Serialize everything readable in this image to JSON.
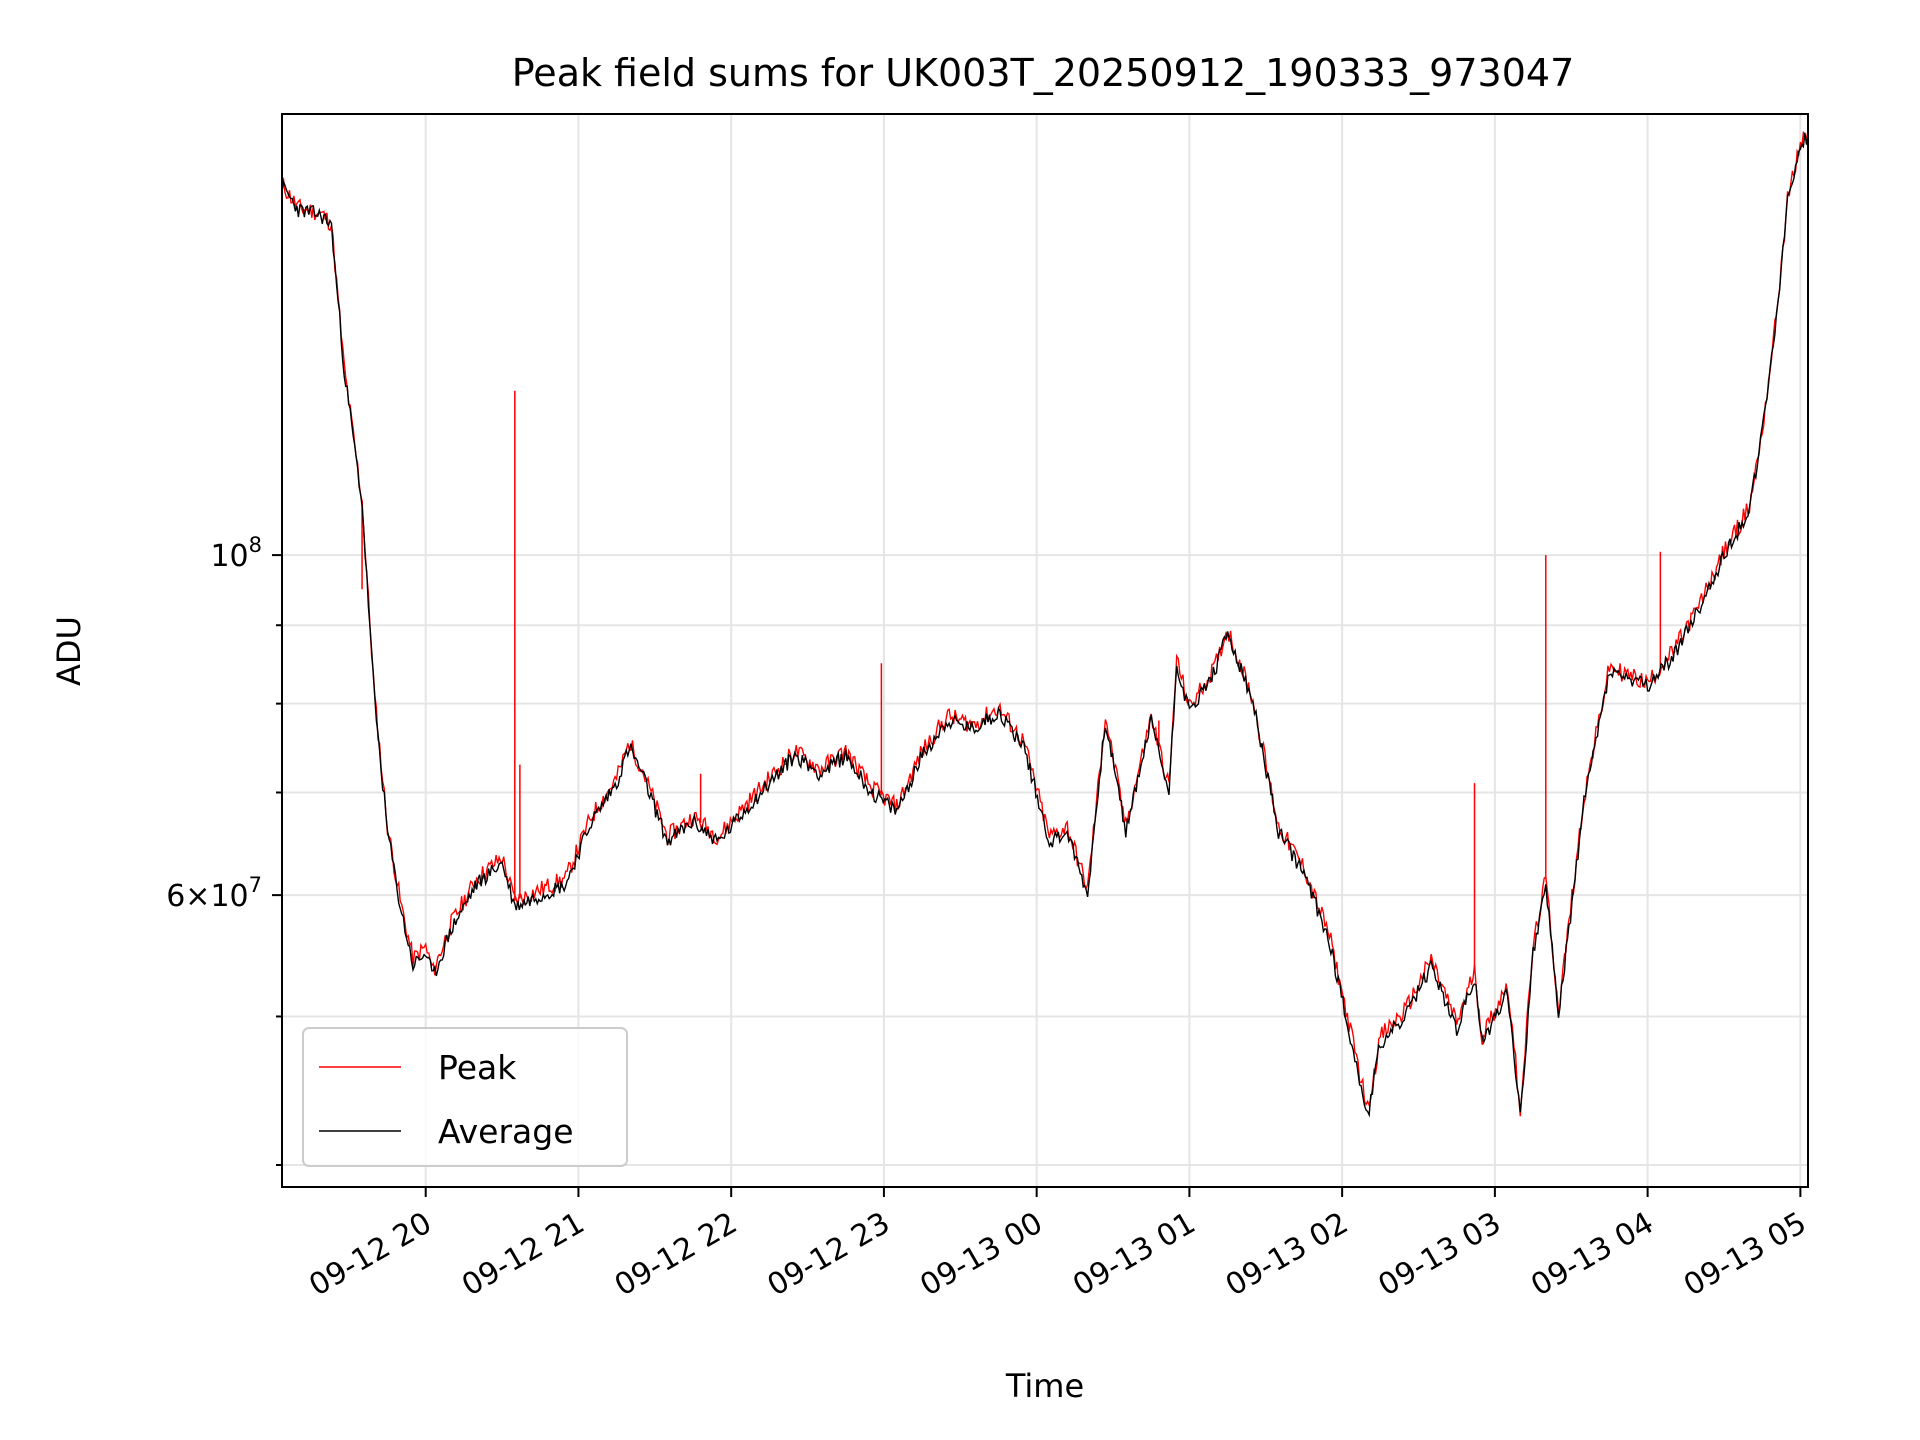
{
  "chart_data": {
    "type": "line",
    "title": "Peak field sums for UK003T_20250912_190333_973047",
    "xlabel": "Time",
    "ylabel": "ADU",
    "y_scale": "log",
    "ylim": [
      38700000,
      194000000
    ],
    "xlim": [
      "2025-09-12 19:03:33",
      "2025-09-13 05:03:00"
    ],
    "grid": true,
    "legend_position": "lower-left",
    "x_ticks": [
      "09-12 20",
      "09-12 21",
      "09-12 22",
      "09-12 23",
      "09-13 00",
      "09-13 01",
      "09-13 02",
      "09-13 03",
      "09-13 04",
      "09-13 05"
    ],
    "y_tick_labels": [
      {
        "value": 100000000,
        "base": "10",
        "exp": "8"
      },
      {
        "value": 60000000,
        "mantissa": "6",
        "base": "10",
        "exp": "7"
      }
    ],
    "colors": {
      "Peak": "#ff0000",
      "Average": "#000000"
    },
    "series": [
      {
        "name": "Average",
        "x": [
          "2025-09-12 19:03:33",
          "2025-09-12 19:10:00",
          "2025-09-12 19:17:00",
          "2025-09-12 19:20:00",
          "2025-09-12 19:23:00",
          "2025-09-12 19:25:00",
          "2025-09-12 19:28:00",
          "2025-09-12 19:35:00",
          "2025-09-12 19:40:00",
          "2025-09-12 19:45:00",
          "2025-09-12 19:50:00",
          "2025-09-12 19:55:00",
          "2025-09-12 20:00:00",
          "2025-09-12 20:03:00",
          "2025-09-12 20:10:00",
          "2025-09-12 20:20:00",
          "2025-09-12 20:30:00",
          "2025-09-12 20:35:00",
          "2025-09-12 20:45:00",
          "2025-09-12 20:55:00",
          "2025-09-12 21:05:00",
          "2025-09-12 21:15:00",
          "2025-09-12 21:20:00",
          "2025-09-12 21:25:00",
          "2025-09-12 21:35:00",
          "2025-09-12 21:45:00",
          "2025-09-12 21:55:00",
          "2025-09-12 22:05:00",
          "2025-09-12 22:15:00",
          "2025-09-12 22:25:00",
          "2025-09-12 22:35:00",
          "2025-09-12 22:45:00",
          "2025-09-12 22:55:00",
          "2025-09-12 23:05:00",
          "2025-09-12 23:15:00",
          "2025-09-12 23:25:00",
          "2025-09-12 23:35:00",
          "2025-09-12 23:45:00",
          "2025-09-12 23:55:00",
          "2025-09-13 00:05:00",
          "2025-09-13 00:12:00",
          "2025-09-13 00:20:00",
          "2025-09-13 00:27:00",
          "2025-09-13 00:35:00",
          "2025-09-13 00:45:00",
          "2025-09-13 00:52:00",
          "2025-09-13 00:55:00",
          "2025-09-13 01:00:00",
          "2025-09-13 01:10:00",
          "2025-09-13 01:15:00",
          "2025-09-13 01:25:00",
          "2025-09-13 01:35:00",
          "2025-09-13 01:45:00",
          "2025-09-13 01:55:00",
          "2025-09-13 02:05:00",
          "2025-09-13 02:10:00",
          "2025-09-13 02:15:00",
          "2025-09-13 02:25:00",
          "2025-09-13 02:35:00",
          "2025-09-13 02:45:00",
          "2025-09-13 02:52:00",
          "2025-09-13 02:55:00",
          "2025-09-13 03:05:00",
          "2025-09-13 03:10:00",
          "2025-09-13 03:15:00",
          "2025-09-13 03:20:00",
          "2025-09-13 03:25:00",
          "2025-09-13 03:35:00",
          "2025-09-13 03:45:00",
          "2025-09-13 04:00:00",
          "2025-09-13 04:10:00",
          "2025-09-13 04:20:00",
          "2025-09-13 04:30:00",
          "2025-09-13 04:40:00",
          "2025-09-13 04:45:00",
          "2025-09-13 04:50:00",
          "2025-09-13 04:55:00",
          "2025-09-13 05:00:00",
          "2025-09-13 05:03:00"
        ],
        "values": [
          174000000,
          168000000,
          167000000,
          166000000,
          164000000,
          150000000,
          132000000,
          108000000,
          80000000,
          66000000,
          59000000,
          54000000,
          55000000,
          53000000,
          57000000,
          61000000,
          63000000,
          59000000,
          60000000,
          61000000,
          67000000,
          71000000,
          75000000,
          72000000,
          65000000,
          67000000,
          65000000,
          68000000,
          71000000,
          74000000,
          72000000,
          74000000,
          70000000,
          68000000,
          74000000,
          78000000,
          77000000,
          79000000,
          75000000,
          65000000,
          66000000,
          60000000,
          78000000,
          66000000,
          78000000,
          70000000,
          85000000,
          79000000,
          84000000,
          89000000,
          80000000,
          66000000,
          62000000,
          56000000,
          47000000,
          43000000,
          48000000,
          50000000,
          54000000,
          49000000,
          53000000,
          48000000,
          52000000,
          43000000,
          55000000,
          61000000,
          50000000,
          69000000,
          84000000,
          82000000,
          86000000,
          92000000,
          100000000,
          107000000,
          120000000,
          140000000,
          170000000,
          185000000,
          188000000
        ]
      },
      {
        "name": "Peak",
        "x": [
          "2025-09-12 19:03:33",
          "2025-09-12 19:10:00",
          "2025-09-12 19:17:00",
          "2025-09-12 19:20:00",
          "2025-09-12 19:23:00",
          "2025-09-12 19:25:00",
          "2025-09-12 19:28:00",
          "2025-09-12 19:35:00",
          "2025-09-12 19:40:00",
          "2025-09-12 19:45:00",
          "2025-09-12 19:50:00",
          "2025-09-12 19:55:00",
          "2025-09-12 20:00:00",
          "2025-09-12 20:03:00",
          "2025-09-12 20:10:00",
          "2025-09-12 20:20:00",
          "2025-09-12 20:30:00",
          "2025-09-12 20:35:00",
          "2025-09-12 20:45:00",
          "2025-09-12 20:55:00",
          "2025-09-12 21:05:00",
          "2025-09-12 21:15:00",
          "2025-09-12 21:20:00",
          "2025-09-12 21:25:00",
          "2025-09-12 21:35:00",
          "2025-09-12 21:45:00",
          "2025-09-12 21:55:00",
          "2025-09-12 22:05:00",
          "2025-09-12 22:15:00",
          "2025-09-12 22:25:00",
          "2025-09-12 22:35:00",
          "2025-09-12 22:45:00",
          "2025-09-12 22:55:00",
          "2025-09-12 23:05:00",
          "2025-09-12 23:15:00",
          "2025-09-12 23:25:00",
          "2025-09-12 23:35:00",
          "2025-09-12 23:45:00",
          "2025-09-12 23:55:00",
          "2025-09-13 00:05:00",
          "2025-09-13 00:12:00",
          "2025-09-13 00:20:00",
          "2025-09-13 00:27:00",
          "2025-09-13 00:35:00",
          "2025-09-13 00:45:00",
          "2025-09-13 00:52:00",
          "2025-09-13 00:55:00",
          "2025-09-13 01:00:00",
          "2025-09-13 01:10:00",
          "2025-09-13 01:15:00",
          "2025-09-13 01:25:00",
          "2025-09-13 01:35:00",
          "2025-09-13 01:45:00",
          "2025-09-13 01:55:00",
          "2025-09-13 02:05:00",
          "2025-09-13 02:10:00",
          "2025-09-13 02:15:00",
          "2025-09-13 02:25:00",
          "2025-09-13 02:35:00",
          "2025-09-13 02:45:00",
          "2025-09-13 02:52:00",
          "2025-09-13 02:55:00",
          "2025-09-13 03:05:00",
          "2025-09-13 03:10:00",
          "2025-09-13 03:15:00",
          "2025-09-13 03:20:00",
          "2025-09-13 03:25:00",
          "2025-09-13 03:35:00",
          "2025-09-13 03:45:00",
          "2025-09-13 04:00:00",
          "2025-09-13 04:10:00",
          "2025-09-13 04:20:00",
          "2025-09-13 04:30:00",
          "2025-09-13 04:40:00",
          "2025-09-13 04:45:00",
          "2025-09-13 04:50:00",
          "2025-09-13 04:55:00",
          "2025-09-13 05:00:00",
          "2025-09-13 05:03:00"
        ],
        "values": [
          174500000,
          168500000,
          167500000,
          166500000,
          164500000,
          150500000,
          132500000,
          108500000,
          80500000,
          66500000,
          59500000,
          54500000,
          55500000,
          53500000,
          57500000,
          61500000,
          63500000,
          59500000,
          60500000,
          61500000,
          67500000,
          71500000,
          75500000,
          72500000,
          65500000,
          67500000,
          65500000,
          68500000,
          71500000,
          74500000,
          72500000,
          74500000,
          70500000,
          68500000,
          74500000,
          78500000,
          77500000,
          79500000,
          75500000,
          65500000,
          66500000,
          60500000,
          78500000,
          66500000,
          78500000,
          70500000,
          85500000,
          79500000,
          84500000,
          89500000,
          80500000,
          66500000,
          62500000,
          56500000,
          47500000,
          43500000,
          48500000,
          50500000,
          54500000,
          49500000,
          53500000,
          48500000,
          52500000,
          43500000,
          55500000,
          61500000,
          50500000,
          69500000,
          84500000,
          82500000,
          86500000,
          92500000,
          100500000,
          107500000,
          120500000,
          140500000,
          170500000,
          185500000,
          189000000
        ]
      }
    ],
    "peak_spikes": [
      {
        "x": "2025-09-12 19:35:00",
        "value": 95000000
      },
      {
        "x": "2025-09-12 20:35:00",
        "value": 128000000
      },
      {
        "x": "2025-09-12 20:37:00",
        "value": 73000000
      },
      {
        "x": "2025-09-12 21:48:00",
        "value": 72000000
      },
      {
        "x": "2025-09-12 22:59:00",
        "value": 85000000
      },
      {
        "x": "2025-09-13 00:48:00",
        "value": 78000000
      },
      {
        "x": "2025-09-13 02:52:00",
        "value": 71000000
      },
      {
        "x": "2025-09-13 03:20:00",
        "value": 100000000
      },
      {
        "x": "2025-09-13 04:05:00",
        "value": 100500000
      }
    ]
  }
}
